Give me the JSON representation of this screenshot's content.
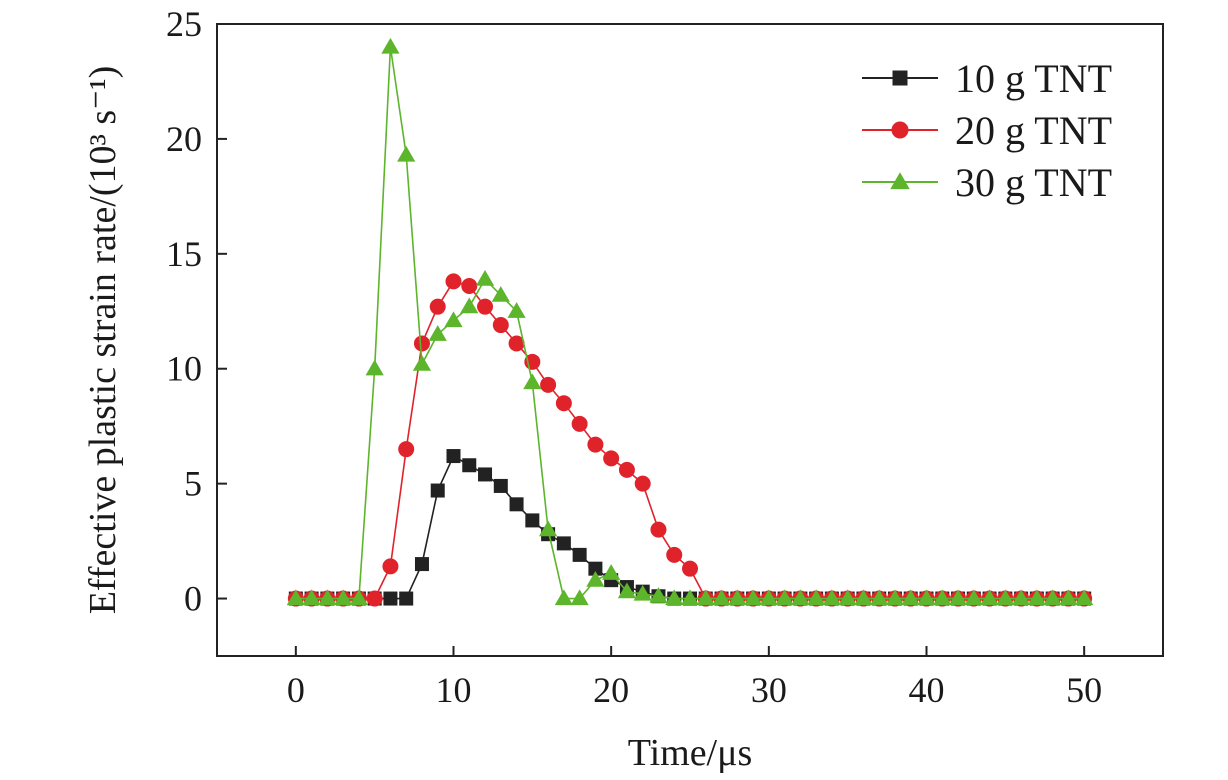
{
  "chart_data": {
    "type": "line",
    "title": "",
    "xlabel": "Time/μs",
    "ylabel": "Effective plastic strain rate/(10³ s⁻¹)",
    "xlim": [
      -5,
      55
    ],
    "ylim": [
      -2.5,
      25
    ],
    "xticks": [
      0,
      10,
      20,
      30,
      40,
      50
    ],
    "yticks": [
      0,
      5,
      10,
      15,
      20,
      25
    ],
    "grid": false,
    "legend_position": "top-right",
    "series": [
      {
        "name": "10 g TNT",
        "color": "#222222",
        "marker": "square",
        "x": [
          0,
          1,
          2,
          3,
          4,
          5,
          6,
          7,
          8,
          9,
          10,
          11,
          12,
          13,
          14,
          15,
          16,
          17,
          18,
          19,
          20,
          21,
          22,
          23,
          24,
          25,
          26,
          27,
          28,
          29,
          30,
          31,
          32,
          33,
          34,
          35,
          36,
          37,
          38,
          39,
          40,
          41,
          42,
          43,
          44,
          45,
          46,
          47,
          48,
          49,
          50
        ],
        "y": [
          0,
          0,
          0,
          0,
          0,
          0,
          0,
          0,
          1.5,
          4.7,
          6.2,
          5.8,
          5.4,
          4.9,
          4.1,
          3.4,
          2.8,
          2.4,
          1.9,
          1.3,
          0.8,
          0.5,
          0.3,
          0.1,
          0,
          0,
          0,
          0,
          0,
          0,
          0,
          0,
          0,
          0,
          0,
          0,
          0,
          0,
          0,
          0,
          0,
          0,
          0,
          0,
          0,
          0,
          0,
          0,
          0,
          0,
          0
        ]
      },
      {
        "name": "20 g TNT",
        "color": "#e0232b",
        "marker": "circle",
        "x": [
          0,
          1,
          2,
          3,
          4,
          5,
          6,
          7,
          8,
          9,
          10,
          11,
          12,
          13,
          14,
          15,
          16,
          17,
          18,
          19,
          20,
          21,
          22,
          23,
          24,
          25,
          26,
          27,
          28,
          29,
          30,
          31,
          32,
          33,
          34,
          35,
          36,
          37,
          38,
          39,
          40,
          41,
          42,
          43,
          44,
          45,
          46,
          47,
          48,
          49,
          50
        ],
        "y": [
          0,
          0,
          0,
          0,
          0,
          0,
          1.4,
          6.5,
          11.1,
          12.7,
          13.8,
          13.6,
          12.7,
          11.9,
          11.1,
          10.3,
          9.3,
          8.5,
          7.6,
          6.7,
          6.1,
          5.6,
          5.0,
          3.0,
          1.9,
          1.3,
          0,
          0,
          0,
          0,
          0,
          0,
          0,
          0,
          0,
          0,
          0,
          0,
          0,
          0,
          0,
          0,
          0,
          0,
          0,
          0,
          0,
          0,
          0,
          0,
          0
        ]
      },
      {
        "name": "30 g TNT",
        "color": "#5cb52b",
        "marker": "triangle",
        "x": [
          0,
          1,
          2,
          3,
          4,
          5,
          6,
          7,
          8,
          9,
          10,
          11,
          12,
          13,
          14,
          15,
          16,
          17,
          18,
          19,
          20,
          21,
          22,
          23,
          24,
          25,
          26,
          27,
          28,
          29,
          30,
          31,
          32,
          33,
          34,
          35,
          36,
          37,
          38,
          39,
          40,
          41,
          42,
          43,
          44,
          45,
          46,
          47,
          48,
          49,
          50
        ],
        "y": [
          0,
          0,
          0,
          0,
          0,
          10.0,
          24.0,
          19.3,
          10.2,
          11.5,
          12.1,
          12.7,
          13.9,
          13.2,
          12.5,
          9.4,
          3.0,
          0,
          0,
          0.8,
          1.1,
          0.3,
          0.2,
          0.1,
          0,
          0,
          0,
          0,
          0,
          0,
          0,
          0,
          0,
          0,
          0,
          0,
          0,
          0,
          0,
          0,
          0,
          0,
          0,
          0,
          0,
          0,
          0,
          0,
          0,
          0,
          0
        ]
      }
    ]
  }
}
